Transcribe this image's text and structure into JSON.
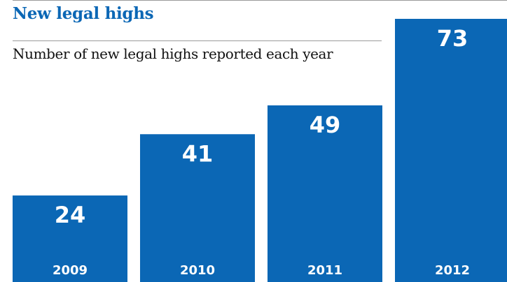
{
  "chart_data": {
    "type": "bar",
    "title": "New legal highs",
    "subtitle": "Number of new legal highs reported each year",
    "categories": [
      "2009",
      "2010",
      "2011",
      "2012"
    ],
    "values": [
      24,
      41,
      49,
      73
    ],
    "xlabel": "",
    "ylabel": "",
    "ylim": [
      0,
      73
    ],
    "grid": false,
    "legend": "none"
  },
  "colors": {
    "bar": "#0b67b5",
    "title": "#0b67b5",
    "label": "#ffffff"
  }
}
